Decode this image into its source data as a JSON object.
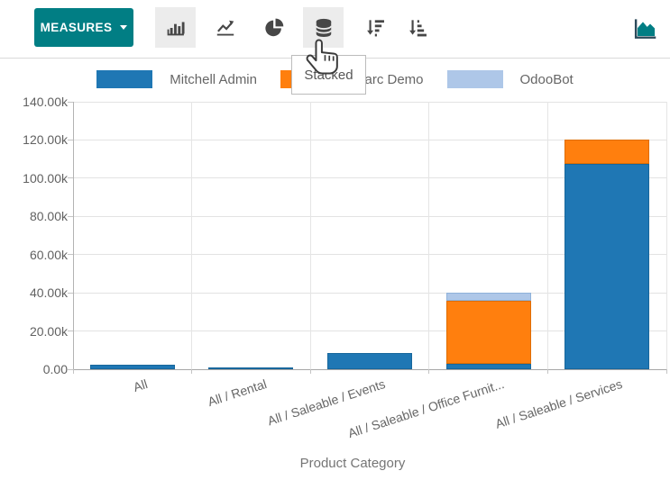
{
  "colors": {
    "accent_teal": "#017e84",
    "icon_dark": "#474747",
    "grid": "#e3e3e3",
    "axis": "#a6a6a6",
    "muted_text": "#666666"
  },
  "toolbar": {
    "measures_button": {
      "label": "MEASURES"
    },
    "chart_type_buttons": [
      {
        "icon": "bar-chart-icon",
        "active": true
      },
      {
        "icon": "line-chart-icon",
        "active": false
      },
      {
        "icon": "pie-chart-icon",
        "active": false
      }
    ],
    "stacked_button": {
      "icon": "stacked-database-icon",
      "active": true,
      "tooltip": "Stacked"
    },
    "sort_buttons": [
      {
        "icon": "sort-descending-icon"
      },
      {
        "icon": "sort-ascending-icon"
      }
    ],
    "view_switcher": {
      "icon": "area-chart-icon",
      "color": "#017e84"
    }
  },
  "chart_data": {
    "type": "bar",
    "stacked": true,
    "grid": true,
    "legend_position": "top",
    "title": "",
    "xlabel": "Product Category",
    "ylabel": "",
    "ylim": [
      0,
      140000
    ],
    "ytick_step": 20000,
    "ytick_labels": [
      "0.00",
      "20.00k",
      "40.00k",
      "60.00k",
      "80.00k",
      "100.00k",
      "120.00k",
      "140.00k"
    ],
    "categories": [
      "All",
      "All / Rental",
      "All / Saleable / Events",
      "All / Saleable / Office Furnit...",
      "All / Saleable / Services"
    ],
    "series": [
      {
        "name": "Mitchell Admin",
        "color": "#1f77b4",
        "border_color": "#18679c",
        "values": [
          2300,
          1100,
          8600,
          2900,
          107500
        ]
      },
      {
        "name": "Marc Demo",
        "color": "#ff7f0e",
        "border_color": "#df6d00",
        "values": [
          0,
          0,
          0,
          33100,
          12500
        ]
      },
      {
        "name": "OdooBot",
        "color": "#aec7e8",
        "border_color": "#8fb2da",
        "values": [
          0,
          0,
          0,
          3900,
          0
        ]
      }
    ]
  }
}
